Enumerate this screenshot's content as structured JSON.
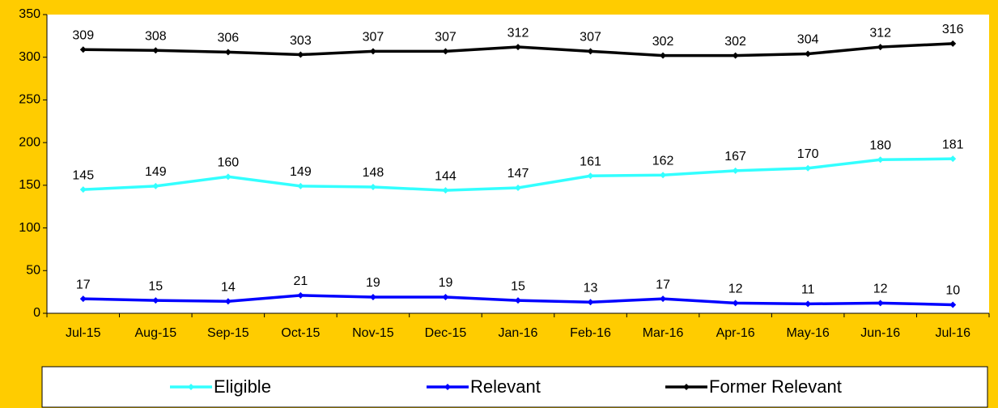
{
  "chart_data": {
    "type": "line",
    "categories": [
      "Jul-15",
      "Aug-15",
      "Sep-15",
      "Oct-15",
      "Nov-15",
      "Dec-15",
      "Jan-16",
      "Feb-16",
      "Mar-16",
      "Apr-16",
      "May-16",
      "Jun-16",
      "Jul-16"
    ],
    "series": [
      {
        "name": "Eligible",
        "color": "#33ffff",
        "values": [
          145,
          149,
          160,
          149,
          148,
          144,
          147,
          161,
          162,
          167,
          170,
          180,
          181
        ]
      },
      {
        "name": "Relevant",
        "color": "#0000ff",
        "values": [
          17,
          15,
          14,
          21,
          19,
          19,
          15,
          13,
          17,
          12,
          11,
          12,
          10
        ]
      },
      {
        "name": "Former Relevant",
        "color": "#000000",
        "values": [
          309,
          308,
          306,
          303,
          307,
          307,
          312,
          307,
          302,
          302,
          304,
          312,
          316
        ]
      }
    ],
    "ylim": [
      0,
      350
    ],
    "yticks": [
      0,
      50,
      100,
      150,
      200,
      250,
      300,
      350
    ],
    "legend": "bottom"
  }
}
